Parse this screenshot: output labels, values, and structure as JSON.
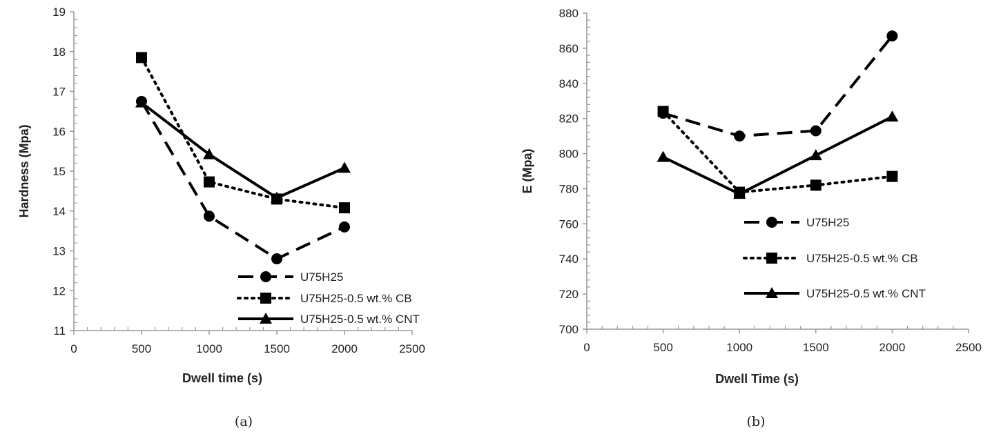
{
  "chart_data": [
    {
      "type": "line",
      "panel_label": "(a)",
      "xlabel": "Dwell time (s)",
      "ylabel": "Hardness (Mpa)",
      "xlim": [
        0,
        2500
      ],
      "ylim": [
        11,
        19
      ],
      "xticks": [
        0,
        500,
        1000,
        1500,
        2000,
        2500
      ],
      "yticks": [
        11,
        12,
        13,
        14,
        15,
        16,
        17,
        18,
        19
      ],
      "x": [
        500,
        1000,
        1500,
        2000
      ],
      "grid": false,
      "legend_position": "bottom-right",
      "series": [
        {
          "name": "U75H25",
          "values": [
            16.75,
            13.87,
            12.8,
            13.6
          ],
          "marker": "circle",
          "line_style": "dashed",
          "color": "#000000"
        },
        {
          "name": "U75H25-0.5 wt.% CB",
          "values": [
            17.85,
            14.73,
            14.3,
            14.08
          ],
          "marker": "square",
          "line_style": "dotted",
          "color": "#000000"
        },
        {
          "name": "U75H25-0.5 wt.% CNT",
          "values": [
            16.72,
            15.42,
            14.33,
            15.08
          ],
          "marker": "triangle",
          "line_style": "solid",
          "color": "#000000"
        }
      ]
    },
    {
      "type": "line",
      "panel_label": "(b)",
      "xlabel": "Dwell Time (s)",
      "ylabel": "E (Mpa)",
      "xlim": [
        0,
        2500
      ],
      "ylim": [
        700,
        880
      ],
      "xticks": [
        0,
        500,
        1000,
        1500,
        2000,
        2500
      ],
      "yticks": [
        700,
        720,
        740,
        760,
        780,
        800,
        820,
        840,
        860,
        880
      ],
      "x": [
        500,
        1000,
        1500,
        2000
      ],
      "grid": false,
      "legend_position": "middle-right",
      "series": [
        {
          "name": "U75H25",
          "values": [
            823,
            810,
            813,
            867
          ],
          "marker": "circle",
          "line_style": "dashed",
          "color": "#000000"
        },
        {
          "name": "U75H25-0.5 wt.% CB",
          "values": [
            824,
            778,
            782,
            787
          ],
          "marker": "square",
          "line_style": "dotted",
          "color": "#000000"
        },
        {
          "name": "U75H25-0.5 wt.% CNT",
          "values": [
            798,
            777,
            799,
            821
          ],
          "marker": "triangle",
          "line_style": "solid",
          "color": "#000000"
        }
      ]
    }
  ]
}
